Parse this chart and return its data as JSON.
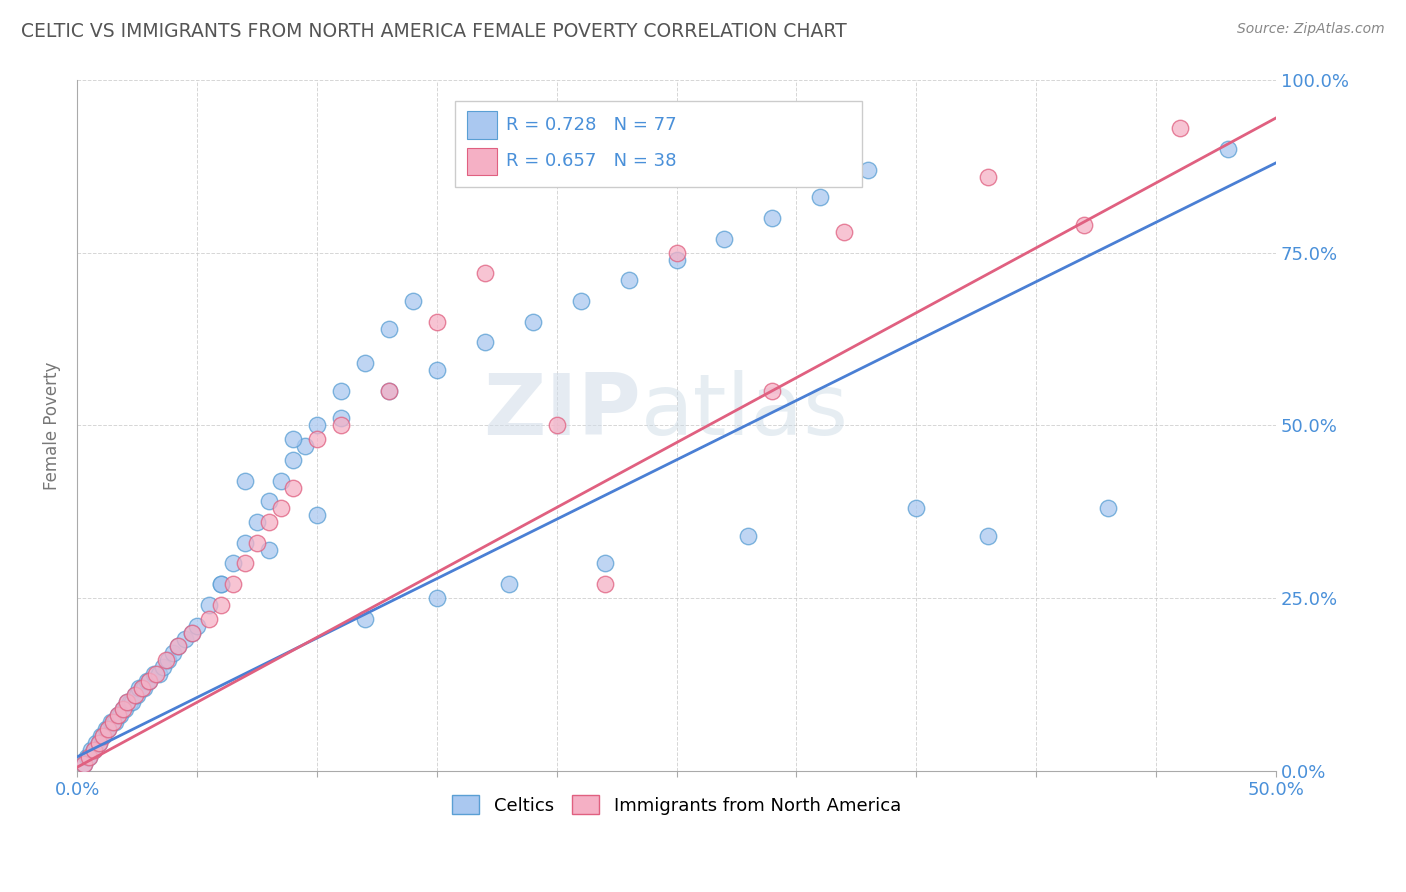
{
  "title": "CELTIC VS IMMIGRANTS FROM NORTH AMERICA FEMALE POVERTY CORRELATION CHART",
  "source": "Source: ZipAtlas.com",
  "ylabel": "Female Poverty",
  "watermark_zip": "ZIP",
  "watermark_atlas": "atlas",
  "celtics_R": 0.728,
  "celtics_N": 77,
  "immigrants_R": 0.657,
  "immigrants_N": 38,
  "celtics_color": "#aac8f0",
  "celtics_edge_color": "#5a9fd4",
  "immigrants_color": "#f5b0c5",
  "immigrants_edge_color": "#e06080",
  "trend_blue": "#4a7fd4",
  "trend_pink": "#e06080",
  "background_color": "#ffffff",
  "grid_color": "#cccccc",
  "title_color": "#555555",
  "legend_R_color": "#4a90d9",
  "axis_label_color": "#4a90d9",
  "xlim": [
    0,
    0.5
  ],
  "ylim": [
    0,
    1.0
  ],
  "celtics_x": [
    0.003,
    0.004,
    0.005,
    0.006,
    0.007,
    0.008,
    0.009,
    0.01,
    0.011,
    0.012,
    0.013,
    0.014,
    0.015,
    0.016,
    0.017,
    0.018,
    0.019,
    0.02,
    0.021,
    0.022,
    0.023,
    0.024,
    0.025,
    0.026,
    0.027,
    0.028,
    0.029,
    0.03,
    0.032,
    0.034,
    0.036,
    0.038,
    0.04,
    0.042,
    0.045,
    0.048,
    0.05,
    0.055,
    0.06,
    0.065,
    0.07,
    0.075,
    0.08,
    0.085,
    0.09,
    0.095,
    0.1,
    0.11,
    0.12,
    0.13,
    0.14,
    0.07,
    0.09,
    0.11,
    0.13,
    0.15,
    0.17,
    0.19,
    0.21,
    0.23,
    0.25,
    0.27,
    0.29,
    0.31,
    0.33,
    0.38,
    0.43,
    0.48,
    0.06,
    0.08,
    0.1,
    0.12,
    0.15,
    0.18,
    0.22,
    0.28,
    0.35
  ],
  "celtics_y": [
    0.01,
    0.02,
    0.02,
    0.03,
    0.03,
    0.04,
    0.04,
    0.05,
    0.05,
    0.06,
    0.06,
    0.07,
    0.07,
    0.07,
    0.08,
    0.08,
    0.09,
    0.09,
    0.1,
    0.1,
    0.1,
    0.11,
    0.11,
    0.12,
    0.12,
    0.12,
    0.13,
    0.13,
    0.14,
    0.14,
    0.15,
    0.16,
    0.17,
    0.18,
    0.19,
    0.2,
    0.21,
    0.24,
    0.27,
    0.3,
    0.33,
    0.36,
    0.39,
    0.42,
    0.45,
    0.47,
    0.5,
    0.55,
    0.59,
    0.64,
    0.68,
    0.42,
    0.48,
    0.51,
    0.55,
    0.58,
    0.62,
    0.65,
    0.68,
    0.71,
    0.74,
    0.77,
    0.8,
    0.83,
    0.87,
    0.34,
    0.38,
    0.9,
    0.27,
    0.32,
    0.37,
    0.22,
    0.25,
    0.27,
    0.3,
    0.34,
    0.38
  ],
  "immigrants_x": [
    0.003,
    0.005,
    0.007,
    0.009,
    0.011,
    0.013,
    0.015,
    0.017,
    0.019,
    0.021,
    0.024,
    0.027,
    0.03,
    0.033,
    0.037,
    0.042,
    0.048,
    0.055,
    0.06,
    0.065,
    0.07,
    0.075,
    0.08,
    0.085,
    0.09,
    0.1,
    0.11,
    0.13,
    0.15,
    0.17,
    0.2,
    0.25,
    0.29,
    0.32,
    0.38,
    0.42,
    0.46,
    0.22
  ],
  "immigrants_y": [
    0.01,
    0.02,
    0.03,
    0.04,
    0.05,
    0.06,
    0.07,
    0.08,
    0.09,
    0.1,
    0.11,
    0.12,
    0.13,
    0.14,
    0.16,
    0.18,
    0.2,
    0.22,
    0.24,
    0.27,
    0.3,
    0.33,
    0.36,
    0.38,
    0.41,
    0.48,
    0.5,
    0.55,
    0.65,
    0.72,
    0.5,
    0.75,
    0.55,
    0.78,
    0.86,
    0.79,
    0.93,
    0.27
  ],
  "trend_blue_x0": 0.0,
  "trend_blue_y0": 0.02,
  "trend_blue_x1": 0.5,
  "trend_blue_y1": 0.88,
  "trend_pink_x0": 0.0,
  "trend_pink_y0": 0.005,
  "trend_pink_x1": 0.5,
  "trend_pink_y1": 0.945
}
